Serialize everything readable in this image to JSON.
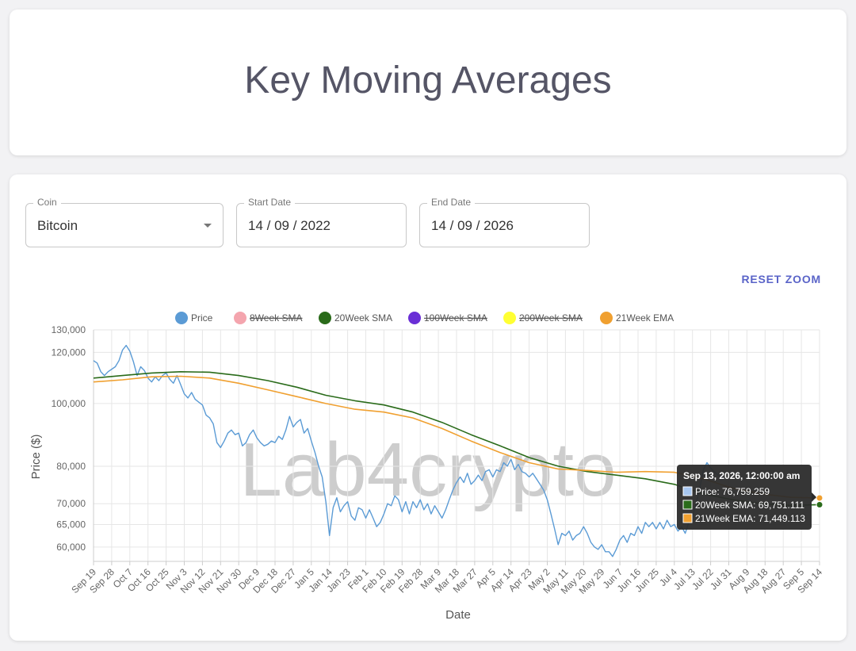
{
  "header": {
    "title": "Key Moving Averages"
  },
  "controls": {
    "coin": {
      "label": "Coin",
      "value": "Bitcoin"
    },
    "start_date": {
      "label": "Start Date",
      "value": "14 / 09 / 2022"
    },
    "end_date": {
      "label": "End Date",
      "value": "14 / 09 / 2026"
    },
    "reset_zoom_label": "RESET ZOOM"
  },
  "watermark": "Lab4crypto",
  "colors": {
    "price": "#5b9bd5",
    "sma8": "#f4a5ae",
    "sma20": "#2a6b1a",
    "sma100": "#6a2fd6",
    "sma200": "#ffff33",
    "ema21": "#f0a030"
  },
  "tooltip": {
    "title": "Sep 13, 2026, 12:00:00 am",
    "lines": [
      {
        "text": "Price: 76,759.259",
        "color": "#a7c7f0"
      },
      {
        "text": "20Week SMA: 69,751.111",
        "color": "#2a6b1a"
      },
      {
        "text": "21Week EMA: 71,449.113",
        "color": "#f0a030"
      }
    ]
  },
  "chart_data": {
    "type": "line",
    "xlabel": "Date",
    "ylabel": "Price ($)",
    "y_scale": "log",
    "ylim": [
      57000,
      130000
    ],
    "x_ticks": [
      "Sep 19",
      "Sep 28",
      "Oct 7",
      "Oct 16",
      "Oct 25",
      "Nov 3",
      "Nov 12",
      "Nov 21",
      "Nov 30",
      "Dec 9",
      "Dec 18",
      "Dec 27",
      "Jan 5",
      "Jan 14",
      "Jan 23",
      "Feb 1",
      "Feb 10",
      "Feb 19",
      "Feb 28",
      "Mar 9",
      "Mar 18",
      "Mar 27",
      "Apr 5",
      "Apr 14",
      "Apr 23",
      "May 2",
      "May 11",
      "May 20",
      "May 29",
      "Jun 7",
      "Jun 16",
      "Jun 25",
      "Jul 4",
      "Jul 13",
      "Jul 22",
      "Jul 31",
      "Aug 9",
      "Aug 18",
      "Aug 27",
      "Sep 5",
      "Sep 14"
    ],
    "y_ticks": [
      {
        "value": 60000,
        "label": "60,000"
      },
      {
        "value": 65000,
        "label": "65,000"
      },
      {
        "value": 70000,
        "label": "70,000"
      },
      {
        "value": 80000,
        "label": "80,000"
      },
      {
        "value": 100000,
        "label": "100,000"
      },
      {
        "value": 120000,
        "label": "120,000"
      },
      {
        "value": 130000,
        "label": "130,000"
      }
    ],
    "legend_position": "top",
    "grid": true,
    "series": [
      {
        "name": "Price",
        "key": "price",
        "hidden": false,
        "points": [
          [
            0,
            116500
          ],
          [
            0.5,
            115500
          ],
          [
            1,
            112000
          ],
          [
            1.5,
            110500
          ],
          [
            2,
            112000
          ],
          [
            3,
            114000
          ],
          [
            3.5,
            116500
          ],
          [
            4,
            121000
          ],
          [
            4.5,
            123000
          ],
          [
            5,
            120500
          ],
          [
            5.5,
            116000
          ],
          [
            6,
            110500
          ],
          [
            6.5,
            114000
          ],
          [
            7,
            112500
          ],
          [
            7.5,
            109500
          ],
          [
            8,
            108000
          ],
          [
            8.5,
            110000
          ],
          [
            9,
            108500
          ],
          [
            9.5,
            110500
          ],
          [
            10,
            111500
          ],
          [
            10.5,
            109000
          ],
          [
            11,
            107500
          ],
          [
            11.5,
            110500
          ],
          [
            12,
            107000
          ],
          [
            12.5,
            103500
          ],
          [
            13,
            102000
          ],
          [
            13.5,
            104000
          ],
          [
            14,
            101500
          ],
          [
            14.5,
            100500
          ],
          [
            15,
            99500
          ],
          [
            15.5,
            96000
          ],
          [
            16,
            95000
          ],
          [
            16.5,
            93000
          ],
          [
            17,
            87000
          ],
          [
            17.5,
            85500
          ],
          [
            18,
            87500
          ],
          [
            18.5,
            90000
          ],
          [
            19,
            91000
          ],
          [
            19.5,
            89500
          ],
          [
            20,
            90000
          ],
          [
            20.5,
            86000
          ],
          [
            21,
            87000
          ],
          [
            21.5,
            89500
          ],
          [
            22,
            91000
          ],
          [
            22.5,
            88500
          ],
          [
            23,
            87000
          ],
          [
            23.5,
            86000
          ],
          [
            24,
            86500
          ],
          [
            24.5,
            87500
          ],
          [
            25,
            87000
          ],
          [
            25.5,
            89000
          ],
          [
            26,
            88000
          ],
          [
            26.5,
            91000
          ],
          [
            27,
            95500
          ],
          [
            27.5,
            92000
          ],
          [
            28,
            93500
          ],
          [
            28.5,
            94500
          ],
          [
            29,
            90000
          ],
          [
            29.5,
            91500
          ],
          [
            30,
            87500
          ],
          [
            30.5,
            84000
          ],
          [
            31,
            80000
          ],
          [
            31.5,
            77000
          ],
          [
            32,
            70500
          ],
          [
            32.5,
            62500
          ],
          [
            33,
            69000
          ],
          [
            33.5,
            71500
          ],
          [
            34,
            68000
          ],
          [
            34.5,
            69500
          ],
          [
            35,
            70500
          ],
          [
            35.5,
            67000
          ],
          [
            36,
            66000
          ],
          [
            36.5,
            69000
          ],
          [
            37,
            68500
          ],
          [
            37.5,
            66500
          ],
          [
            38,
            68500
          ],
          [
            38.5,
            66500
          ],
          [
            39,
            64500
          ],
          [
            39.5,
            65500
          ],
          [
            40,
            67500
          ],
          [
            40.5,
            70000
          ],
          [
            41,
            69500
          ],
          [
            41.5,
            72000
          ],
          [
            42,
            71000
          ],
          [
            42.5,
            68000
          ],
          [
            43,
            70500
          ],
          [
            43.5,
            67500
          ],
          [
            44,
            70500
          ],
          [
            44.5,
            69000
          ],
          [
            45,
            71000
          ],
          [
            45.5,
            68500
          ],
          [
            46,
            70000
          ],
          [
            46.5,
            67500
          ],
          [
            47,
            69500
          ],
          [
            47.5,
            68000
          ],
          [
            48,
            66500
          ],
          [
            48.5,
            68500
          ],
          [
            49,
            71000
          ],
          [
            49.5,
            73500
          ],
          [
            50,
            75500
          ],
          [
            50.5,
            77000
          ],
          [
            51,
            75500
          ],
          [
            51.5,
            78000
          ],
          [
            52,
            75000
          ],
          [
            52.5,
            76000
          ],
          [
            53,
            77500
          ],
          [
            53.5,
            76000
          ],
          [
            54,
            78500
          ],
          [
            54.5,
            79000
          ],
          [
            55,
            77000
          ],
          [
            55.5,
            79000
          ],
          [
            56,
            78500
          ],
          [
            56.5,
            81000
          ],
          [
            57,
            80000
          ],
          [
            57.5,
            82000
          ],
          [
            58,
            79000
          ],
          [
            58.5,
            80500
          ],
          [
            59,
            78500
          ],
          [
            59.5,
            78000
          ],
          [
            60,
            77000
          ],
          [
            60.5,
            78000
          ],
          [
            61,
            76500
          ],
          [
            61.5,
            75000
          ],
          [
            62,
            73500
          ],
          [
            62.5,
            71000
          ],
          [
            63,
            67500
          ],
          [
            63.5,
            64000
          ],
          [
            64,
            60500
          ],
          [
            64.5,
            63000
          ],
          [
            65,
            62500
          ],
          [
            65.5,
            63500
          ],
          [
            66,
            61500
          ],
          [
            66.5,
            62500
          ],
          [
            67,
            63000
          ],
          [
            67.5,
            64500
          ],
          [
            68,
            63000
          ],
          [
            68.5,
            61000
          ],
          [
            69,
            60000
          ],
          [
            69.5,
            59500
          ],
          [
            70,
            60500
          ],
          [
            70.5,
            59000
          ],
          [
            71,
            59000
          ],
          [
            71.5,
            58000
          ],
          [
            72,
            59500
          ],
          [
            72.5,
            61500
          ],
          [
            73,
            62500
          ],
          [
            73.5,
            61000
          ],
          [
            74,
            63000
          ],
          [
            74.5,
            62500
          ],
          [
            75,
            64500
          ],
          [
            75.5,
            63000
          ],
          [
            76,
            65500
          ],
          [
            76.5,
            64500
          ],
          [
            77,
            65500
          ],
          [
            77.5,
            64000
          ],
          [
            78,
            65500
          ],
          [
            78.5,
            64000
          ],
          [
            79,
            66000
          ],
          [
            79.5,
            64500
          ],
          [
            80,
            65000
          ],
          [
            80.5,
            63500
          ],
          [
            81,
            64500
          ],
          [
            81.5,
            63000
          ],
          [
            82,
            65500
          ],
          [
            82.5,
            67000
          ],
          [
            83,
            70000
          ],
          [
            83.5,
            74000
          ],
          [
            84,
            79000
          ],
          [
            84.5,
            81000
          ],
          [
            85,
            79500
          ],
          [
            85.5,
            78500
          ],
          [
            86,
            77500
          ],
          [
            86.5,
            76759
          ]
        ]
      },
      {
        "name": "8Week SMA",
        "key": "sma8",
        "hidden": true,
        "points": []
      },
      {
        "name": "20Week SMA",
        "key": "sma20",
        "hidden": false,
        "points": [
          [
            0,
            109500
          ],
          [
            4,
            110500
          ],
          [
            8,
            111500
          ],
          [
            12,
            112000
          ],
          [
            16,
            111800
          ],
          [
            20,
            110500
          ],
          [
            24,
            108500
          ],
          [
            28,
            106000
          ],
          [
            32,
            103000
          ],
          [
            36,
            101000
          ],
          [
            40,
            99500
          ],
          [
            44,
            97000
          ],
          [
            48,
            93500
          ],
          [
            52,
            89500
          ],
          [
            56,
            86000
          ],
          [
            60,
            82500
          ],
          [
            64,
            80000
          ],
          [
            68,
            78500
          ],
          [
            72,
            77500
          ],
          [
            76,
            76500
          ],
          [
            80,
            75000
          ],
          [
            84,
            72500
          ],
          [
            88,
            71000
          ],
          [
            92,
            70000
          ],
          [
            96,
            69600
          ],
          [
            100,
            69751
          ]
        ]
      },
      {
        "name": "100Week SMA",
        "key": "sma100",
        "hidden": true,
        "points": []
      },
      {
        "name": "200Week SMA",
        "key": "sma200",
        "hidden": true,
        "points": []
      },
      {
        "name": "21Week EMA",
        "key": "ema21",
        "hidden": false,
        "points": [
          [
            0,
            108000
          ],
          [
            4,
            108800
          ],
          [
            8,
            110000
          ],
          [
            12,
            110200
          ],
          [
            16,
            109500
          ],
          [
            20,
            107500
          ],
          [
            24,
            105000
          ],
          [
            28,
            102500
          ],
          [
            32,
            100000
          ],
          [
            36,
            98000
          ],
          [
            40,
            97000
          ],
          [
            44,
            95000
          ],
          [
            48,
            91500
          ],
          [
            52,
            87500
          ],
          [
            56,
            84000
          ],
          [
            60,
            81000
          ],
          [
            64,
            79200
          ],
          [
            68,
            78800
          ],
          [
            72,
            78300
          ],
          [
            76,
            78500
          ],
          [
            80,
            78300
          ],
          [
            84,
            76500
          ],
          [
            88,
            74000
          ],
          [
            92,
            72500
          ],
          [
            96,
            71600
          ],
          [
            100,
            71449
          ]
        ]
      }
    ]
  }
}
